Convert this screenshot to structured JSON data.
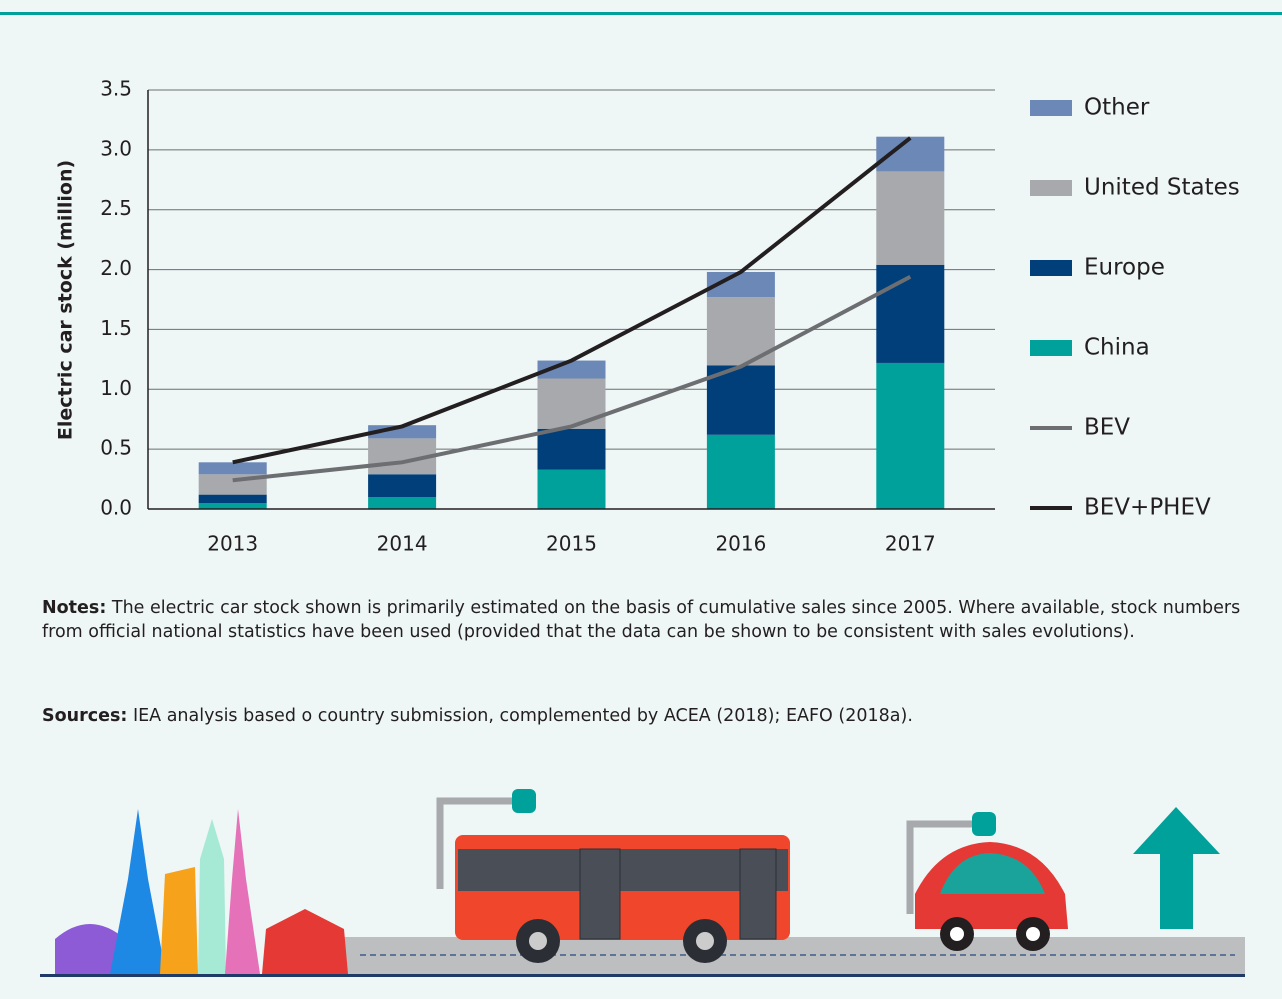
{
  "chart_data": {
    "type": "bar",
    "y_label": "Electric car stock (million)",
    "categories": [
      "2013",
      "2014",
      "2015",
      "2016",
      "2017"
    ],
    "series": [
      {
        "name": "China",
        "type": "bar",
        "color": "#00a19a",
        "values": [
          0.05,
          0.1,
          0.33,
          0.62,
          1.22
        ]
      },
      {
        "name": "Europe",
        "type": "bar",
        "color": "#003f7a",
        "values": [
          0.07,
          0.19,
          0.34,
          0.58,
          0.82
        ]
      },
      {
        "name": "United States",
        "type": "bar",
        "color": "#a7a9ac",
        "values": [
          0.17,
          0.3,
          0.42,
          0.57,
          0.78
        ]
      },
      {
        "name": "Other",
        "type": "bar",
        "color": "#6c88b6",
        "values": [
          0.1,
          0.11,
          0.15,
          0.21,
          0.29
        ]
      },
      {
        "name": "BEV",
        "type": "line",
        "color": "#6d6e71",
        "values": [
          0.24,
          0.39,
          0.69,
          1.19,
          1.94
        ]
      },
      {
        "name": "BEV+PHEV",
        "type": "line",
        "color": "#231f20",
        "values": [
          0.39,
          0.69,
          1.24,
          1.98,
          3.1
        ]
      }
    ],
    "ylim": [
      0,
      3.5
    ],
    "yticks": [
      {
        "value": 0,
        "label": "0.0"
      },
      0.5,
      {
        "value": 1,
        "label": "1.0"
      },
      1.5,
      {
        "value": 2,
        "label": "2.0"
      },
      2.5,
      {
        "value": 3,
        "label": "3.0"
      },
      3.5
    ],
    "grid": true,
    "stacked": true,
    "legend": "right"
  },
  "notes": {
    "label": "Notes:",
    "text": " The electric car stock shown is primarily estimated on the basis of cumulative sales since 2005. Where available, stock numbers from official national statistics have been used (provided that the data can be shown to be consistent with sales evolutions)."
  },
  "sources": {
    "label": "Sources:",
    "text": " IEA analysis based o country submission, complemented by ACEA (2018); EAFO (2018a)."
  }
}
